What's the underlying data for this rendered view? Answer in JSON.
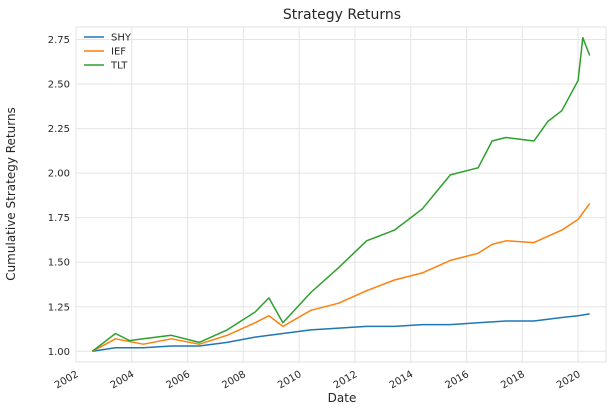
{
  "chart_data": {
    "type": "line",
    "title": "Strategy Returns",
    "xlabel": "Date",
    "ylabel": "Cumulative Strategy Returns",
    "xlim": [
      "2002-01-01",
      "2021-01-01"
    ],
    "ylim": [
      0.94,
      2.82
    ],
    "x_ticks": [
      "2002",
      "2004",
      "2006",
      "2008",
      "2010",
      "2012",
      "2014",
      "2016",
      "2018",
      "2020"
    ],
    "y_ticks": [
      "1.00",
      "1.25",
      "1.50",
      "1.75",
      "2.00",
      "2.25",
      "2.50",
      "2.75"
    ],
    "grid": true,
    "legend": "top-left",
    "series": [
      {
        "name": "SHY",
        "color": "#1f77b4",
        "points": [
          [
            "2002-08",
            1.0
          ],
          [
            "2003-06",
            1.02
          ],
          [
            "2004-06",
            1.02
          ],
          [
            "2005-06",
            1.03
          ],
          [
            "2006-06",
            1.03
          ],
          [
            "2007-06",
            1.05
          ],
          [
            "2008-06",
            1.08
          ],
          [
            "2009-06",
            1.1
          ],
          [
            "2010-06",
            1.12
          ],
          [
            "2011-06",
            1.13
          ],
          [
            "2012-06",
            1.14
          ],
          [
            "2013-06",
            1.14
          ],
          [
            "2014-06",
            1.15
          ],
          [
            "2015-06",
            1.15
          ],
          [
            "2016-06",
            1.16
          ],
          [
            "2017-06",
            1.17
          ],
          [
            "2018-06",
            1.17
          ],
          [
            "2019-06",
            1.19
          ],
          [
            "2020-01",
            1.2
          ],
          [
            "2020-06",
            1.21
          ]
        ]
      },
      {
        "name": "IEF",
        "color": "#ff7f0e",
        "points": [
          [
            "2002-08",
            1.0
          ],
          [
            "2003-06",
            1.07
          ],
          [
            "2004-06",
            1.04
          ],
          [
            "2005-06",
            1.07
          ],
          [
            "2006-06",
            1.04
          ],
          [
            "2007-06",
            1.09
          ],
          [
            "2008-06",
            1.16
          ],
          [
            "2008-12",
            1.2
          ],
          [
            "2009-06",
            1.14
          ],
          [
            "2010-06",
            1.23
          ],
          [
            "2011-06",
            1.27
          ],
          [
            "2012-06",
            1.34
          ],
          [
            "2013-06",
            1.4
          ],
          [
            "2014-06",
            1.44
          ],
          [
            "2015-06",
            1.51
          ],
          [
            "2016-06",
            1.55
          ],
          [
            "2016-12",
            1.6
          ],
          [
            "2017-06",
            1.62
          ],
          [
            "2018-06",
            1.61
          ],
          [
            "2019-06",
            1.68
          ],
          [
            "2020-01",
            1.74
          ],
          [
            "2020-06",
            1.83
          ]
        ]
      },
      {
        "name": "TLT",
        "color": "#2ca02c",
        "points": [
          [
            "2002-08",
            1.0
          ],
          [
            "2003-06",
            1.1
          ],
          [
            "2003-12",
            1.06
          ],
          [
            "2004-06",
            1.07
          ],
          [
            "2005-06",
            1.09
          ],
          [
            "2006-06",
            1.05
          ],
          [
            "2007-06",
            1.12
          ],
          [
            "2008-06",
            1.22
          ],
          [
            "2008-12",
            1.3
          ],
          [
            "2009-06",
            1.16
          ],
          [
            "2010-06",
            1.33
          ],
          [
            "2011-06",
            1.47
          ],
          [
            "2012-06",
            1.62
          ],
          [
            "2013-06",
            1.68
          ],
          [
            "2014-06",
            1.8
          ],
          [
            "2015-06",
            1.99
          ],
          [
            "2016-06",
            2.03
          ],
          [
            "2016-12",
            2.18
          ],
          [
            "2017-06",
            2.2
          ],
          [
            "2018-06",
            2.18
          ],
          [
            "2018-12",
            2.29
          ],
          [
            "2019-06",
            2.35
          ],
          [
            "2020-01",
            2.52
          ],
          [
            "2020-03",
            2.76
          ],
          [
            "2020-06",
            2.66
          ]
        ]
      }
    ]
  }
}
